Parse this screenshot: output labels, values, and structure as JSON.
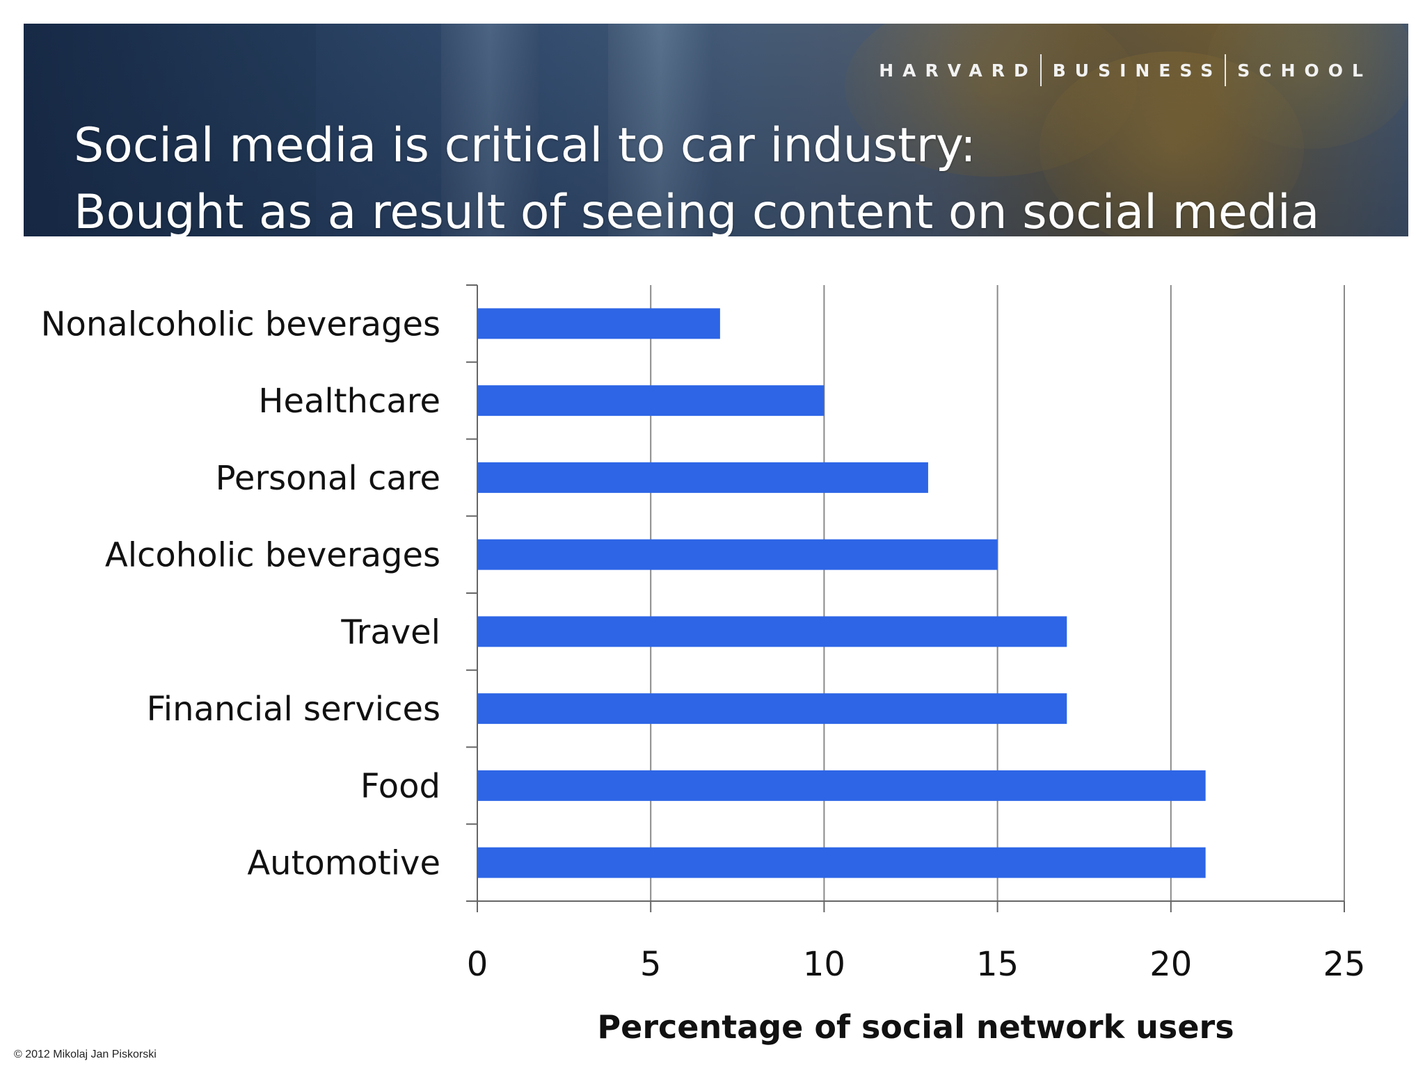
{
  "header": {
    "institution": [
      "HARVARD",
      "BUSINESS",
      "SCHOOL"
    ],
    "title_line1": "Social media is critical to car industry:",
    "title_line2": "Bought as a result of seeing content on social media"
  },
  "chart_data": {
    "type": "bar",
    "orientation": "horizontal",
    "categories": [
      "Nonalcoholic beverages",
      "Healthcare",
      "Personal care",
      "Alcoholic beverages",
      "Travel",
      "Financial services",
      "Food",
      "Automotive"
    ],
    "values": [
      7,
      10,
      13,
      15,
      17,
      17,
      21,
      21
    ],
    "xlabel": "Percentage of social network users",
    "ylabel": "",
    "xlim": [
      0,
      25
    ],
    "xticks": [
      0,
      5,
      10,
      15,
      20,
      25
    ],
    "grid": "vertical",
    "bar_color": "#2d65e6"
  },
  "footer": {
    "copyright": "© 2012 Mikolaj Jan Piskorski"
  }
}
